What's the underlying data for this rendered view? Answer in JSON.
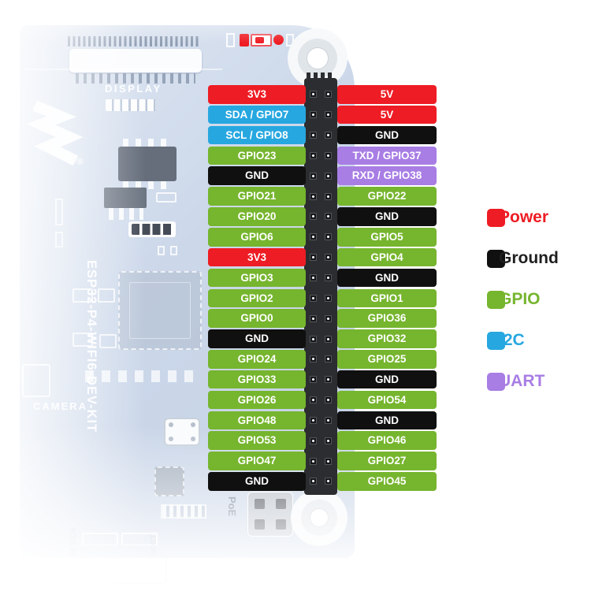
{
  "board": {
    "title_vertical": "ESP32-P4-WIFI6-DEV-KIT",
    "display_label": "DISPLAY",
    "camera_label": "CAMERA",
    "poe_label": "PoE",
    "device_label": "DEVICE",
    "host_label": "HOST",
    "registered_mark": "®"
  },
  "colors": {
    "power": "#ee1c24",
    "ground": "#101010",
    "gpio": "#76b52e",
    "i2c": "#27a7e0",
    "uart": "#a87de4",
    "board": "#ccd8ea",
    "legend_ground_text": "#1f1f1f"
  },
  "pinout": {
    "rows": [
      {
        "left": {
          "label": "3V3",
          "type": "power"
        },
        "right": {
          "label": "5V",
          "type": "power"
        }
      },
      {
        "left": {
          "label": "SDA / GPIO7",
          "type": "i2c"
        },
        "right": {
          "label": "5V",
          "type": "power"
        }
      },
      {
        "left": {
          "label": "SCL / GPIO8",
          "type": "i2c"
        },
        "right": {
          "label": "GND",
          "type": "ground"
        }
      },
      {
        "left": {
          "label": "GPIO23",
          "type": "gpio"
        },
        "right": {
          "label": "TXD / GPIO37",
          "type": "uart"
        }
      },
      {
        "left": {
          "label": "GND",
          "type": "ground"
        },
        "right": {
          "label": "RXD / GPIO38",
          "type": "uart"
        }
      },
      {
        "left": {
          "label": "GPIO21",
          "type": "gpio"
        },
        "right": {
          "label": "GPIO22",
          "type": "gpio"
        }
      },
      {
        "left": {
          "label": "GPIO20",
          "type": "gpio"
        },
        "right": {
          "label": "GND",
          "type": "ground"
        }
      },
      {
        "left": {
          "label": "GPIO6",
          "type": "gpio"
        },
        "right": {
          "label": "GPIO5",
          "type": "gpio"
        }
      },
      {
        "left": {
          "label": "3V3",
          "type": "power"
        },
        "right": {
          "label": "GPIO4",
          "type": "gpio"
        }
      },
      {
        "left": {
          "label": "GPIO3",
          "type": "gpio"
        },
        "right": {
          "label": "GND",
          "type": "ground"
        }
      },
      {
        "left": {
          "label": "GPIO2",
          "type": "gpio"
        },
        "right": {
          "label": "GPIO1",
          "type": "gpio"
        }
      },
      {
        "left": {
          "label": "GPIO0",
          "type": "gpio"
        },
        "right": {
          "label": "GPIO36",
          "type": "gpio"
        }
      },
      {
        "left": {
          "label": "GND",
          "type": "ground"
        },
        "right": {
          "label": "GPIO32",
          "type": "gpio"
        }
      },
      {
        "left": {
          "label": "GPIO24",
          "type": "gpio"
        },
        "right": {
          "label": "GPIO25",
          "type": "gpio"
        }
      },
      {
        "left": {
          "label": "GPIO33",
          "type": "gpio"
        },
        "right": {
          "label": "GND",
          "type": "ground"
        }
      },
      {
        "left": {
          "label": "GPIO26",
          "type": "gpio"
        },
        "right": {
          "label": "GPIO54",
          "type": "gpio"
        }
      },
      {
        "left": {
          "label": "GPIO48",
          "type": "gpio"
        },
        "right": {
          "label": "GND",
          "type": "ground"
        }
      },
      {
        "left": {
          "label": "GPIO53",
          "type": "gpio"
        },
        "right": {
          "label": "GPIO46",
          "type": "gpio"
        }
      },
      {
        "left": {
          "label": "GPIO47",
          "type": "gpio"
        },
        "right": {
          "label": "GPIO27",
          "type": "gpio"
        }
      },
      {
        "left": {
          "label": "GND",
          "type": "ground"
        },
        "right": {
          "label": "GPIO45",
          "type": "gpio"
        }
      }
    ]
  },
  "legend": {
    "items": [
      {
        "label": "Power",
        "type": "power"
      },
      {
        "label": "Ground",
        "type": "ground"
      },
      {
        "label": "GPIO",
        "type": "gpio"
      },
      {
        "label": "I2C",
        "type": "i2c"
      },
      {
        "label": "UART",
        "type": "uart"
      }
    ]
  }
}
